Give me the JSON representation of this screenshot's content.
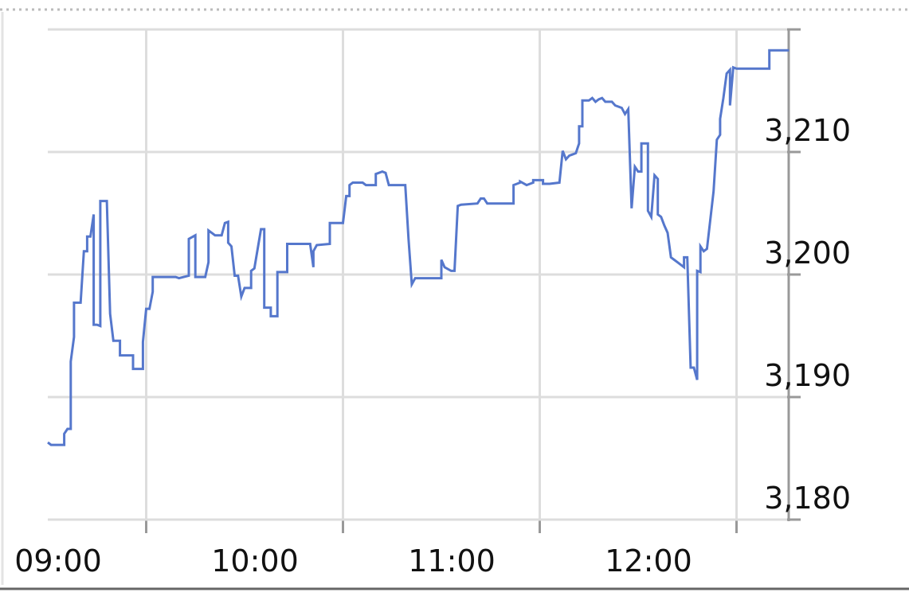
{
  "chart_data": {
    "type": "line",
    "title": "",
    "xlabel": "",
    "ylabel": "",
    "ylim": [
      3180,
      3220
    ],
    "xlim": [
      "09:00",
      "12:46"
    ],
    "y_ticks": [
      {
        "value": 3180,
        "label": "3,180"
      },
      {
        "value": 3190,
        "label": "3,190"
      },
      {
        "value": 3200,
        "label": "3,200"
      },
      {
        "value": 3210,
        "label": "3,210"
      }
    ],
    "x_ticks": [
      {
        "time": "09:00",
        "label": "09:00"
      },
      {
        "time": "10:00",
        "label": "10:00"
      },
      {
        "time": "11:00",
        "label": "11:00"
      },
      {
        "time": "12:00",
        "label": "12:00"
      }
    ],
    "x_gridlines": [
      "09:30",
      "10:30",
      "11:30",
      "12:30"
    ],
    "grid": true,
    "y_axis_position": "right",
    "colors": {
      "line": "#5577cc",
      "grid": "#dddddd",
      "axis": "#999999"
    },
    "series": [
      {
        "points": [
          [
            "09:00",
            3186.3
          ],
          [
            "09:01",
            3186.1
          ],
          [
            "09:05",
            3186.1
          ],
          [
            "09:05",
            3187.0
          ],
          [
            "09:06",
            3187.4
          ],
          [
            "09:07",
            3187.4
          ],
          [
            "09:07",
            3192.9
          ],
          [
            "09:08",
            3194.9
          ],
          [
            "09:08",
            3197.7
          ],
          [
            "09:10",
            3197.7
          ],
          [
            "09:11",
            3201.9
          ],
          [
            "09:12",
            3201.9
          ],
          [
            "09:12",
            3203.1
          ],
          [
            "09:13",
            3203.1
          ],
          [
            "09:14",
            3204.9
          ],
          [
            "09:14",
            3195.9
          ],
          [
            "09:15",
            3195.9
          ],
          [
            "09:16",
            3195.8
          ],
          [
            "09:16",
            3206.0
          ],
          [
            "09:18",
            3206.0
          ],
          [
            "09:19",
            3196.8
          ],
          [
            "09:20",
            3194.6
          ],
          [
            "09:22",
            3194.6
          ],
          [
            "09:22",
            3193.4
          ],
          [
            "09:26",
            3193.4
          ],
          [
            "09:26",
            3192.3
          ],
          [
            "09:29",
            3192.3
          ],
          [
            "09:29",
            3194.5
          ],
          [
            "09:30",
            3197.2
          ],
          [
            "09:31",
            3197.2
          ],
          [
            "09:32",
            3198.6
          ],
          [
            "09:32",
            3199.8
          ],
          [
            "09:39",
            3199.8
          ],
          [
            "09:40",
            3199.7
          ],
          [
            "09:43",
            3199.9
          ],
          [
            "09:43",
            3200.0
          ],
          [
            "09:43",
            3202.9
          ],
          [
            "09:45",
            3203.2
          ],
          [
            "09:45",
            3199.8
          ],
          [
            "09:48",
            3199.8
          ],
          [
            "09:49",
            3201.0
          ],
          [
            "09:49",
            3203.6
          ],
          [
            "09:51",
            3203.2
          ],
          [
            "09:53",
            3203.2
          ],
          [
            "09:54",
            3204.2
          ],
          [
            "09:55",
            3204.3
          ],
          [
            "09:55",
            3202.6
          ],
          [
            "09:56",
            3202.3
          ],
          [
            "09:57",
            3199.9
          ],
          [
            "09:58",
            3199.9
          ],
          [
            "09:59",
            3198.2
          ],
          [
            "10:00",
            3198.9
          ],
          [
            "10:02",
            3198.9
          ],
          [
            "10:02",
            3200.3
          ],
          [
            "10:03",
            3200.5
          ],
          [
            "10:05",
            3203.7
          ],
          [
            "10:06",
            3203.7
          ],
          [
            "10:06",
            3197.3
          ],
          [
            "10:08",
            3197.3
          ],
          [
            "10:08",
            3196.6
          ],
          [
            "10:10",
            3196.6
          ],
          [
            "10:10",
            3200.2
          ],
          [
            "10:13",
            3200.2
          ],
          [
            "10:13",
            3202.5
          ],
          [
            "10:20",
            3202.5
          ],
          [
            "10:21",
            3200.6
          ],
          [
            "10:21",
            3201.9
          ],
          [
            "10:22",
            3202.4
          ],
          [
            "10:26",
            3202.5
          ],
          [
            "10:26",
            3204.2
          ],
          [
            "10:30",
            3204.2
          ],
          [
            "10:31",
            3206.4
          ],
          [
            "10:32",
            3206.4
          ],
          [
            "10:32",
            3207.3
          ],
          [
            "10:33",
            3207.5
          ],
          [
            "10:36",
            3207.5
          ],
          [
            "10:37",
            3207.3
          ],
          [
            "10:40",
            3207.3
          ],
          [
            "10:40",
            3208.2
          ],
          [
            "10:42",
            3208.4
          ],
          [
            "10:43",
            3208.3
          ],
          [
            "10:44",
            3207.3
          ],
          [
            "10:49",
            3207.3
          ],
          [
            "10:50",
            3202.9
          ],
          [
            "10:50",
            3202.9
          ],
          [
            "10:51",
            3199.2
          ],
          [
            "10:52",
            3199.7
          ],
          [
            "11:00",
            3199.7
          ],
          [
            "11:00",
            3201.2
          ],
          [
            "11:01",
            3200.6
          ],
          [
            "11:03",
            3200.3
          ],
          [
            "11:04",
            3200.3
          ],
          [
            "11:05",
            3205.6
          ],
          [
            "11:06",
            3205.7
          ],
          [
            "11:11",
            3205.8
          ],
          [
            "11:12",
            3206.2
          ],
          [
            "11:13",
            3206.2
          ],
          [
            "11:14",
            3205.8
          ],
          [
            "11:22",
            3205.8
          ],
          [
            "11:22",
            3207.3
          ],
          [
            "11:24",
            3207.5
          ],
          [
            "11:24",
            3207.6
          ],
          [
            "11:26",
            3207.3
          ],
          [
            "11:28",
            3207.5
          ],
          [
            "11:28",
            3207.7
          ],
          [
            "11:31",
            3207.7
          ],
          [
            "11:31",
            3207.4
          ],
          [
            "11:33",
            3207.4
          ],
          [
            "11:36",
            3207.5
          ],
          [
            "11:37",
            3210.1
          ],
          [
            "11:38",
            3209.4
          ],
          [
            "11:39",
            3209.7
          ],
          [
            "11:40",
            3209.8
          ],
          [
            "11:41",
            3209.9
          ],
          [
            "11:42",
            3210.7
          ],
          [
            "11:42",
            3212.1
          ],
          [
            "11:43",
            3212.1
          ],
          [
            "11:43",
            3214.2
          ],
          [
            "11:45",
            3214.2
          ],
          [
            "11:46",
            3214.4
          ],
          [
            "11:47",
            3214.1
          ],
          [
            "11:48",
            3214.3
          ],
          [
            "11:49",
            3214.4
          ],
          [
            "11:50",
            3214.1
          ],
          [
            "11:52",
            3214.1
          ],
          [
            "11:53",
            3213.8
          ],
          [
            "11:55",
            3213.6
          ],
          [
            "11:56",
            3213.1
          ],
          [
            "11:57",
            3213.5
          ],
          [
            "11:58",
            3205.4
          ],
          [
            "11:59",
            3208.8
          ],
          [
            "12:00",
            3208.4
          ],
          [
            "12:01",
            3208.4
          ],
          [
            "12:01",
            3210.7
          ],
          [
            "12:03",
            3210.7
          ],
          [
            "12:03",
            3205.2
          ],
          [
            "12:04",
            3204.7
          ],
          [
            "12:05",
            3208.1
          ],
          [
            "12:06",
            3207.8
          ],
          [
            "12:06",
            3204.9
          ],
          [
            "12:07",
            3204.7
          ],
          [
            "12:08",
            3204.0
          ],
          [
            "12:09",
            3203.4
          ],
          [
            "12:10",
            3201.4
          ],
          [
            "12:11",
            3201.2
          ],
          [
            "12:12",
            3201.0
          ],
          [
            "12:14",
            3200.6
          ],
          [
            "12:14",
            3201.4
          ],
          [
            "12:15",
            3201.4
          ],
          [
            "12:16",
            3192.4
          ],
          [
            "12:17",
            3192.4
          ],
          [
            "12:18",
            3191.4
          ],
          [
            "12:18",
            3200.3
          ],
          [
            "12:19",
            3200.2
          ],
          [
            "12:19",
            3202.3
          ],
          [
            "12:20",
            3201.9
          ],
          [
            "12:21",
            3202.1
          ],
          [
            "12:23",
            3206.8
          ],
          [
            "12:23",
            3206.8
          ],
          [
            "12:24",
            3211.0
          ],
          [
            "12:25",
            3211.4
          ],
          [
            "12:25",
            3212.7
          ],
          [
            "12:26",
            3214.4
          ],
          [
            "12:26",
            3214.4
          ],
          [
            "12:27",
            3216.4
          ],
          [
            "12:28",
            3216.7
          ],
          [
            "12:28",
            3213.8
          ],
          [
            "12:29",
            3216.9
          ],
          [
            "12:30",
            3216.8
          ],
          [
            "12:40",
            3216.8
          ],
          [
            "12:40",
            3218.3
          ],
          [
            "12:46",
            3218.3
          ]
        ]
      }
    ]
  }
}
